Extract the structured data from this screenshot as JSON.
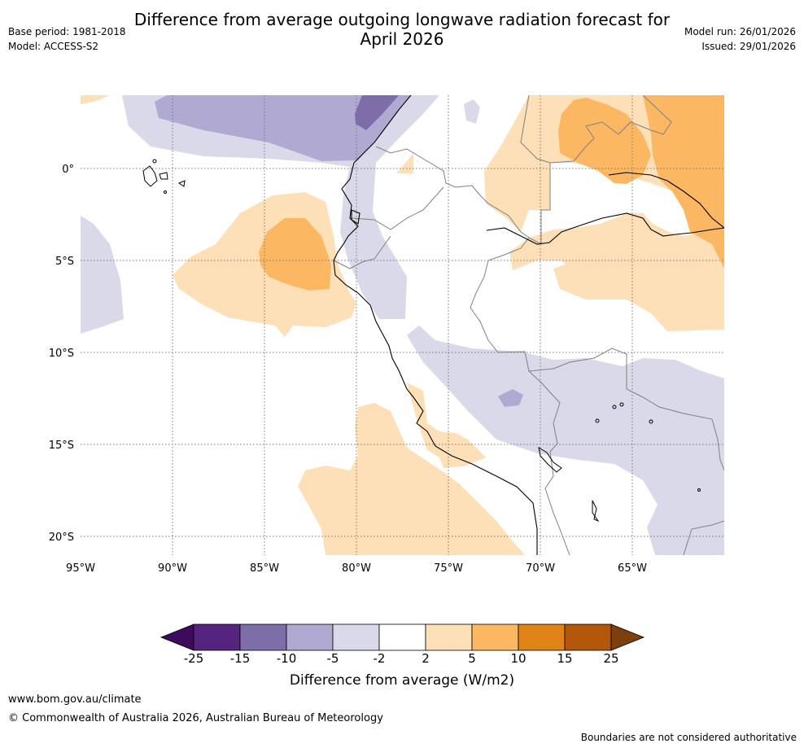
{
  "header": {
    "title_line1": "Difference from average outgoing longwave radiation forecast for",
    "title_line2": "April 2026",
    "base_period": "Base period: 1981-2018",
    "model": "Model: ACCESS-S2",
    "model_run": "Model run: 26/01/2026",
    "issued": "Issued: 29/01/2026"
  },
  "map": {
    "lat_labels": [
      "0°",
      "5°S",
      "10°S",
      "15°S",
      "20°S"
    ],
    "lon_labels": [
      "95°W",
      "90°W",
      "85°W",
      "80°W",
      "75°W",
      "70°W",
      "65°W"
    ],
    "lat_range": [
      -21,
      4
    ],
    "lon_range": [
      -95,
      -60
    ],
    "grid": true
  },
  "legend": {
    "ticks": [
      "-25",
      "-15",
      "-10",
      "-5",
      "-2",
      "2",
      "5",
      "10",
      "15",
      "25"
    ],
    "colors": [
      "#3d0a5c",
      "#54247f",
      "#7d6da8",
      "#b0a9d2",
      "#d9d9ea",
      "#ffffff",
      "#fde0b7",
      "#fbb762",
      "#e08417",
      "#b3580b",
      "#7e3f0c"
    ],
    "label": "Difference from average (W/m2)"
  },
  "footer": {
    "url": "www.bom.gov.au/climate",
    "copyright": "© Commonwealth of Australia 2026, Australian Bureau of Meteorology",
    "disclaimer": "Boundaries are not considered authoritative"
  }
}
